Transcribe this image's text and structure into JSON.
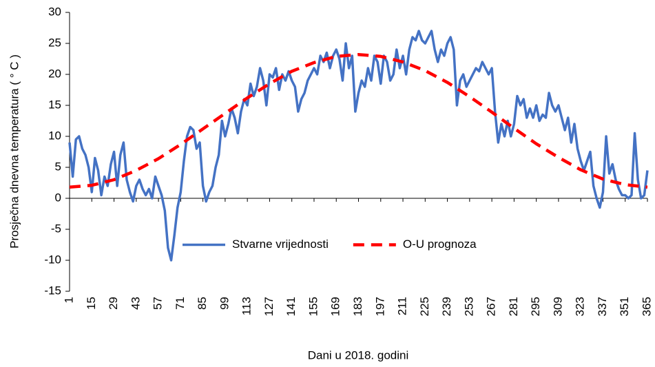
{
  "chart_data": {
    "type": "line",
    "xlabel": "Dani u 2018. godini",
    "ylabel": "Prosječna dnevna temperatura ( ° C )",
    "xlim": [
      1,
      365
    ],
    "xticks": [
      1,
      15,
      29,
      43,
      57,
      71,
      85,
      99,
      113,
      127,
      141,
      155,
      169,
      183,
      197,
      211,
      225,
      239,
      253,
      267,
      281,
      295,
      309,
      323,
      337,
      351,
      365
    ],
    "ylim": [
      -15,
      30
    ],
    "yticks": [
      -15,
      -10,
      -5,
      0,
      5,
      10,
      15,
      20,
      25,
      30
    ],
    "legend": "center",
    "series": [
      {
        "name": "Stvarne vrijednosti",
        "color": "#4472c4",
        "dashed": false,
        "x": [
          1,
          3,
          5,
          7,
          9,
          11,
          13,
          15,
          17,
          19,
          21,
          23,
          25,
          27,
          29,
          31,
          33,
          35,
          37,
          39,
          41,
          43,
          45,
          47,
          49,
          51,
          53,
          55,
          57,
          59,
          61,
          63,
          65,
          67,
          69,
          71,
          73,
          75,
          77,
          79,
          81,
          83,
          85,
          87,
          89,
          91,
          93,
          95,
          97,
          99,
          101,
          103,
          105,
          107,
          109,
          111,
          113,
          115,
          117,
          119,
          121,
          123,
          125,
          127,
          129,
          131,
          133,
          135,
          137,
          139,
          141,
          143,
          145,
          147,
          149,
          151,
          153,
          155,
          157,
          159,
          161,
          163,
          165,
          167,
          169,
          171,
          173,
          175,
          177,
          179,
          181,
          183,
          185,
          187,
          189,
          191,
          193,
          195,
          197,
          199,
          201,
          203,
          205,
          207,
          209,
          211,
          213,
          215,
          217,
          219,
          221,
          223,
          225,
          227,
          229,
          231,
          233,
          235,
          237,
          239,
          241,
          243,
          245,
          247,
          249,
          251,
          253,
          255,
          257,
          259,
          261,
          263,
          265,
          267,
          269,
          271,
          273,
          275,
          277,
          279,
          281,
          283,
          285,
          287,
          289,
          291,
          293,
          295,
          297,
          299,
          301,
          303,
          305,
          307,
          309,
          311,
          313,
          315,
          317,
          319,
          321,
          323,
          325,
          327,
          329,
          331,
          333,
          335,
          337,
          339,
          341,
          343,
          345,
          347,
          349,
          351,
          353,
          355,
          357,
          359,
          361,
          363,
          365
        ],
        "values": [
          9,
          3.5,
          9.5,
          10,
          8,
          7,
          5,
          1,
          6.5,
          4.5,
          0.5,
          3.5,
          2,
          5.5,
          7.5,
          2,
          7,
          9,
          3,
          1,
          -0.5,
          2,
          3,
          1.5,
          0.5,
          1.5,
          0,
          3.5,
          2,
          0.5,
          -2,
          -8,
          -10,
          -6,
          -1.5,
          1,
          6,
          10,
          11.5,
          11,
          8,
          9,
          2,
          -0.5,
          1,
          2,
          5,
          7,
          12.5,
          10,
          12,
          14.5,
          13,
          10.5,
          14,
          16,
          15,
          18.5,
          16.5,
          18,
          21,
          19,
          15,
          20,
          19.5,
          21,
          17.5,
          20,
          19,
          20.5,
          19,
          18,
          14,
          16,
          17,
          19,
          20,
          21,
          20,
          23,
          22,
          23.5,
          21,
          23,
          24,
          22.5,
          19,
          25,
          21,
          23,
          14,
          17,
          19,
          18,
          21,
          19,
          23,
          22,
          18.5,
          23,
          22,
          19,
          20,
          24,
          21,
          23,
          20,
          24,
          26,
          25.5,
          27,
          25.5,
          25,
          26,
          27,
          24,
          22,
          24,
          23,
          25,
          26,
          24,
          15,
          19,
          20,
          18,
          19,
          20,
          21,
          20.5,
          22,
          21,
          20,
          21,
          14,
          9,
          12,
          10,
          12.5,
          10,
          12,
          16.5,
          15,
          16,
          13,
          14.5,
          13,
          15,
          12.5,
          13.5,
          13,
          17,
          15,
          14,
          15,
          13,
          11,
          13,
          9,
          12,
          8,
          6,
          4.5,
          6,
          7.5,
          2,
          0,
          -1.5,
          1,
          10,
          4,
          5.5,
          3,
          1.5,
          0.5,
          0.5,
          0,
          0.5,
          10.5,
          3,
          0,
          0.5,
          4.5
        ]
      },
      {
        "name": "O-U prognoza",
        "color": "#ff0000",
        "dashed": true,
        "x": [
          1,
          15,
          29,
          43,
          57,
          71,
          85,
          99,
          113,
          127,
          141,
          155,
          169,
          183,
          197,
          211,
          225,
          239,
          253,
          267,
          281,
          295,
          309,
          323,
          337,
          351,
          365
        ],
        "values": [
          1.8,
          2.1,
          3.0,
          4.5,
          6.4,
          8.7,
          11.2,
          13.7,
          16.2,
          18.5,
          20.5,
          21.9,
          22.9,
          23.2,
          22.9,
          22.0,
          20.6,
          18.7,
          16.4,
          13.9,
          11.3,
          8.8,
          6.6,
          4.6,
          3.1,
          2.2,
          1.8
        ]
      }
    ]
  }
}
